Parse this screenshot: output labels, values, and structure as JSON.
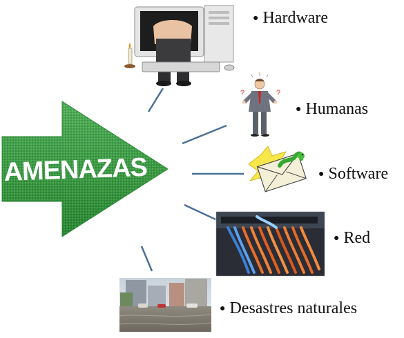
{
  "center": {
    "label": "AMENAZAS"
  },
  "items": [
    {
      "id": "hardware",
      "label": "Hardware",
      "icon": "computer-repair-icon"
    },
    {
      "id": "humanas",
      "label": "Humanas",
      "icon": "confused-person-icon"
    },
    {
      "id": "software",
      "label": "Software",
      "icon": "envelope-worm-icon"
    },
    {
      "id": "red",
      "label": "Red",
      "icon": "network-cables-photo"
    },
    {
      "id": "desastres",
      "label": "Desastres naturales",
      "icon": "flood-photo"
    }
  ],
  "colors": {
    "arrow": "#2e9a3a",
    "arrow_light": "#4ec34f",
    "connector": "#4a6f95"
  }
}
